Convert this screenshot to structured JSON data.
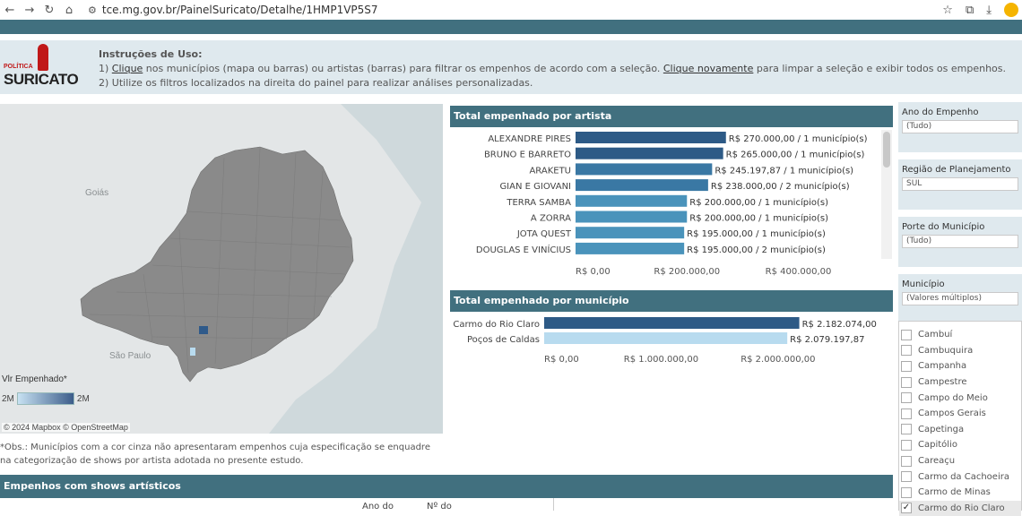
{
  "browser": {
    "url": "tce.mg.gov.br/PainelSuricato/Detalhe/1HMP1VP5S7",
    "icons": [
      "back-icon",
      "forward-icon",
      "reload-icon",
      "home-icon",
      "tune-icon",
      "star-icon",
      "extension-icon",
      "download-icon"
    ]
  },
  "header": {
    "logo_top": "POLÍTICA",
    "logo_main": "SURICATO",
    "instr_title": "Instruções de Uso:",
    "line1_pre": "1) ",
    "line1_link1": "Clique",
    "line1_mid": " nos municípios (mapa ou barras) ou artistas (barras) para filtrar os empenhos de acordo com a seleção. ",
    "line1_link2": "Clique novamente",
    "line1_post": " para limpar a seleção e exibir todos os empenhos.",
    "line2": "2) Utilize os filtros localizados na direita do painel para realizar análises personalizadas."
  },
  "map": {
    "label_goias": "Goiás",
    "label_sp": "São Paulo",
    "legend_title": "Vlr Empenhado*",
    "legend_min": "2M",
    "legend_max": "2M",
    "copyright": "© 2024 Mapbox © OpenStreetMap",
    "obs": "*Obs.: Municípios com a cor cinza não apresentaram empenhos cuja especificação se enquadre na categorização de shows por artista adotada no presente estudo."
  },
  "chart_data": [
    {
      "type": "bar",
      "title": "Total empenhado por artista",
      "categories": [
        "ALEXANDRE PIRES",
        "BRUNO E BARRETO",
        "ARAKETU",
        "GIAN E GIOVANI",
        "TERRA SAMBA",
        "A ZORRA",
        "JOTA QUEST",
        "DOUGLAS E VINÍCIUS"
      ],
      "values": [
        270000,
        265000,
        245197.87,
        238000,
        200000,
        200000,
        195000,
        195000
      ],
      "labels": [
        "R$ 270.000,00 / 1 município(s)",
        "R$ 265.000,00 / 1 município(s)",
        "R$ 245.197,87 / 1 município(s)",
        "R$ 238.000,00 / 2 município(s)",
        "R$ 200.000,00 / 1 município(s)",
        "R$ 200.000,00 / 1 município(s)",
        "R$ 195.000,00 / 1 município(s)",
        "R$ 195.000,00 / 2 município(s)"
      ],
      "colors": [
        "#2d5a86",
        "#2d5a86",
        "#3a78a4",
        "#3a78a4",
        "#4a93bb",
        "#4a93bb",
        "#4a93bb",
        "#4a93bb"
      ],
      "xticks": [
        "R$ 0,00",
        "R$ 200.000,00",
        "R$ 400.000,00"
      ],
      "xtick_values": [
        0,
        200000,
        400000
      ],
      "xlim": [
        0,
        544000
      ]
    },
    {
      "type": "bar",
      "title": "Total empenhado por município",
      "categories": [
        "Carmo do Rio Claro",
        "Poços de Caldas"
      ],
      "values": [
        2182074,
        2079197.87
      ],
      "labels": [
        "R$ 2.182.074,00",
        "R$ 2.079.197,87"
      ],
      "colors": [
        "#2d5a86",
        "#b8dbef"
      ],
      "xticks": [
        "R$ 0,00",
        "R$ 1.000.000,00",
        "R$ 2.000.000,00"
      ],
      "xtick_values": [
        0,
        1000000,
        2000000
      ],
      "xlim": [
        0,
        2860000
      ]
    }
  ],
  "filters": {
    "ano": {
      "title": "Ano do Empenho",
      "value": "(Tudo)"
    },
    "regiao": {
      "title": "Região de Planejamento",
      "value": "SUL"
    },
    "porte": {
      "title": "Porte do Município",
      "value": "(Tudo)"
    },
    "municipio": {
      "title": "Município",
      "value": "(Valores múltiplos)"
    }
  },
  "dropdown_items": [
    {
      "label": "Cambuí",
      "checked": false
    },
    {
      "label": "Cambuquira",
      "checked": false
    },
    {
      "label": "Campanha",
      "checked": false
    },
    {
      "label": "Campestre",
      "checked": false
    },
    {
      "label": "Campo do Meio",
      "checked": false
    },
    {
      "label": "Campos Gerais",
      "checked": false
    },
    {
      "label": "Capetinga",
      "checked": false
    },
    {
      "label": "Capitólio",
      "checked": false
    },
    {
      "label": "Careaçu",
      "checked": false
    },
    {
      "label": "Carmo da Cachoeira",
      "checked": false
    },
    {
      "label": "Carmo de Minas",
      "checked": false
    },
    {
      "label": "Carmo do Rio Claro",
      "checked": true
    }
  ],
  "bottom": {
    "title": "Empenhos com shows artísticos",
    "col1": "Ano do",
    "col2": "Nº do"
  }
}
